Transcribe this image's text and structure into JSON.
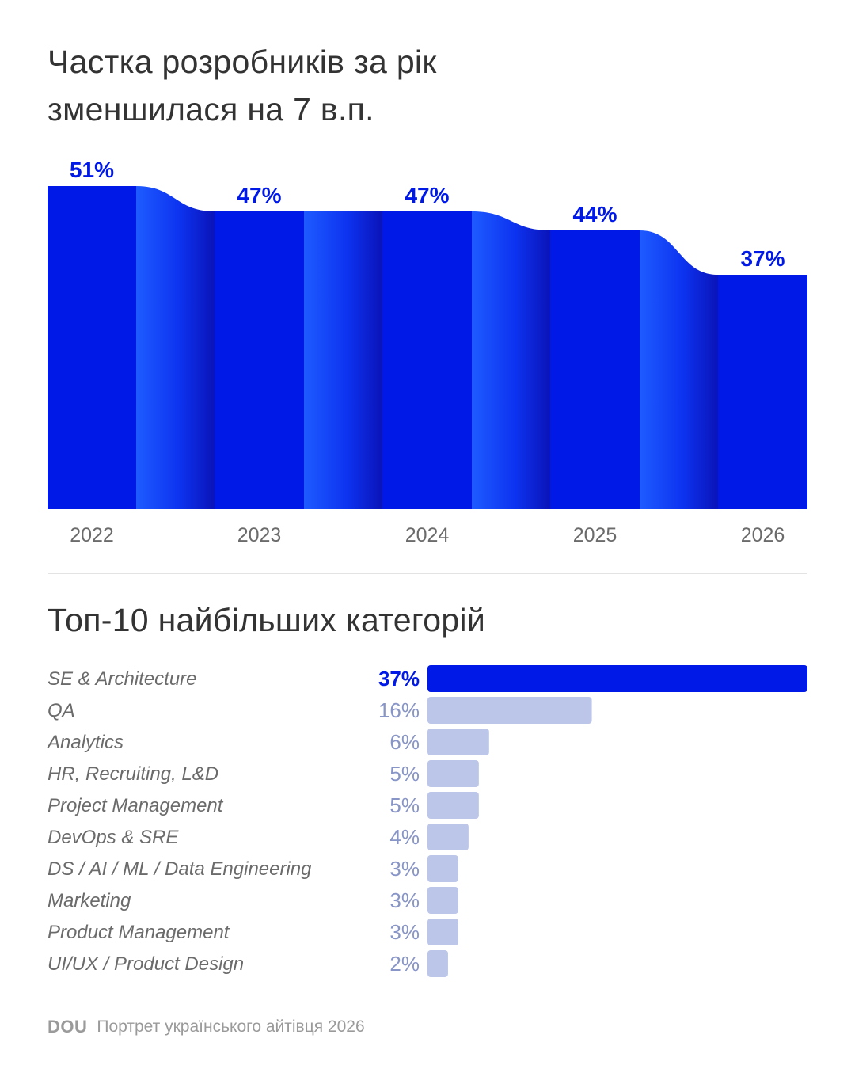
{
  "header": {
    "title": "Частка розробників за рік\nзменшилася на 7 в.п."
  },
  "subtitle": "Топ-10 найбільших категорій",
  "footer": {
    "logo": "DOU",
    "text": "Портрет українського айтівця 2026"
  },
  "colors": {
    "accent": "#0019e6",
    "accent_gradient_light": "#1e5bff",
    "bar_muted": "#bcc6e8",
    "label_muted": "#8895c7",
    "tick_text": "#6b6b6b",
    "category_text": "#6b6b6b"
  },
  "chart_data": [
    {
      "type": "area",
      "categories": [
        "2022",
        "2023",
        "2024",
        "2025",
        "2026"
      ],
      "values": [
        51,
        47,
        47,
        44,
        37
      ],
      "value_labels": [
        "51%",
        "47%",
        "47%",
        "44%",
        "37%"
      ],
      "title": "Частка розробників за рік зменшилася на 7 в.п.",
      "unit": "%",
      "grid": false,
      "legend": "none"
    },
    {
      "type": "bar",
      "orientation": "horizontal",
      "title": "Топ-10 найбільших категорій",
      "categories": [
        "SE & Architecture",
        "QA",
        "Analytics",
        "HR, Recruiting, L&D",
        "Project Management",
        "DevOps & SRE",
        "DS / AI / ML / Data Engineering",
        "Marketing",
        "Product Management",
        "UI/UX / Product Design"
      ],
      "values": [
        37,
        16,
        6,
        5,
        5,
        4,
        3,
        3,
        3,
        2
      ],
      "value_labels": [
        "37%",
        "16%",
        "6%",
        "5%",
        "5%",
        "4%",
        "3%",
        "3%",
        "3%",
        "2%"
      ],
      "highlight_index": 0,
      "unit": "%",
      "grid": false,
      "legend": "none"
    }
  ]
}
